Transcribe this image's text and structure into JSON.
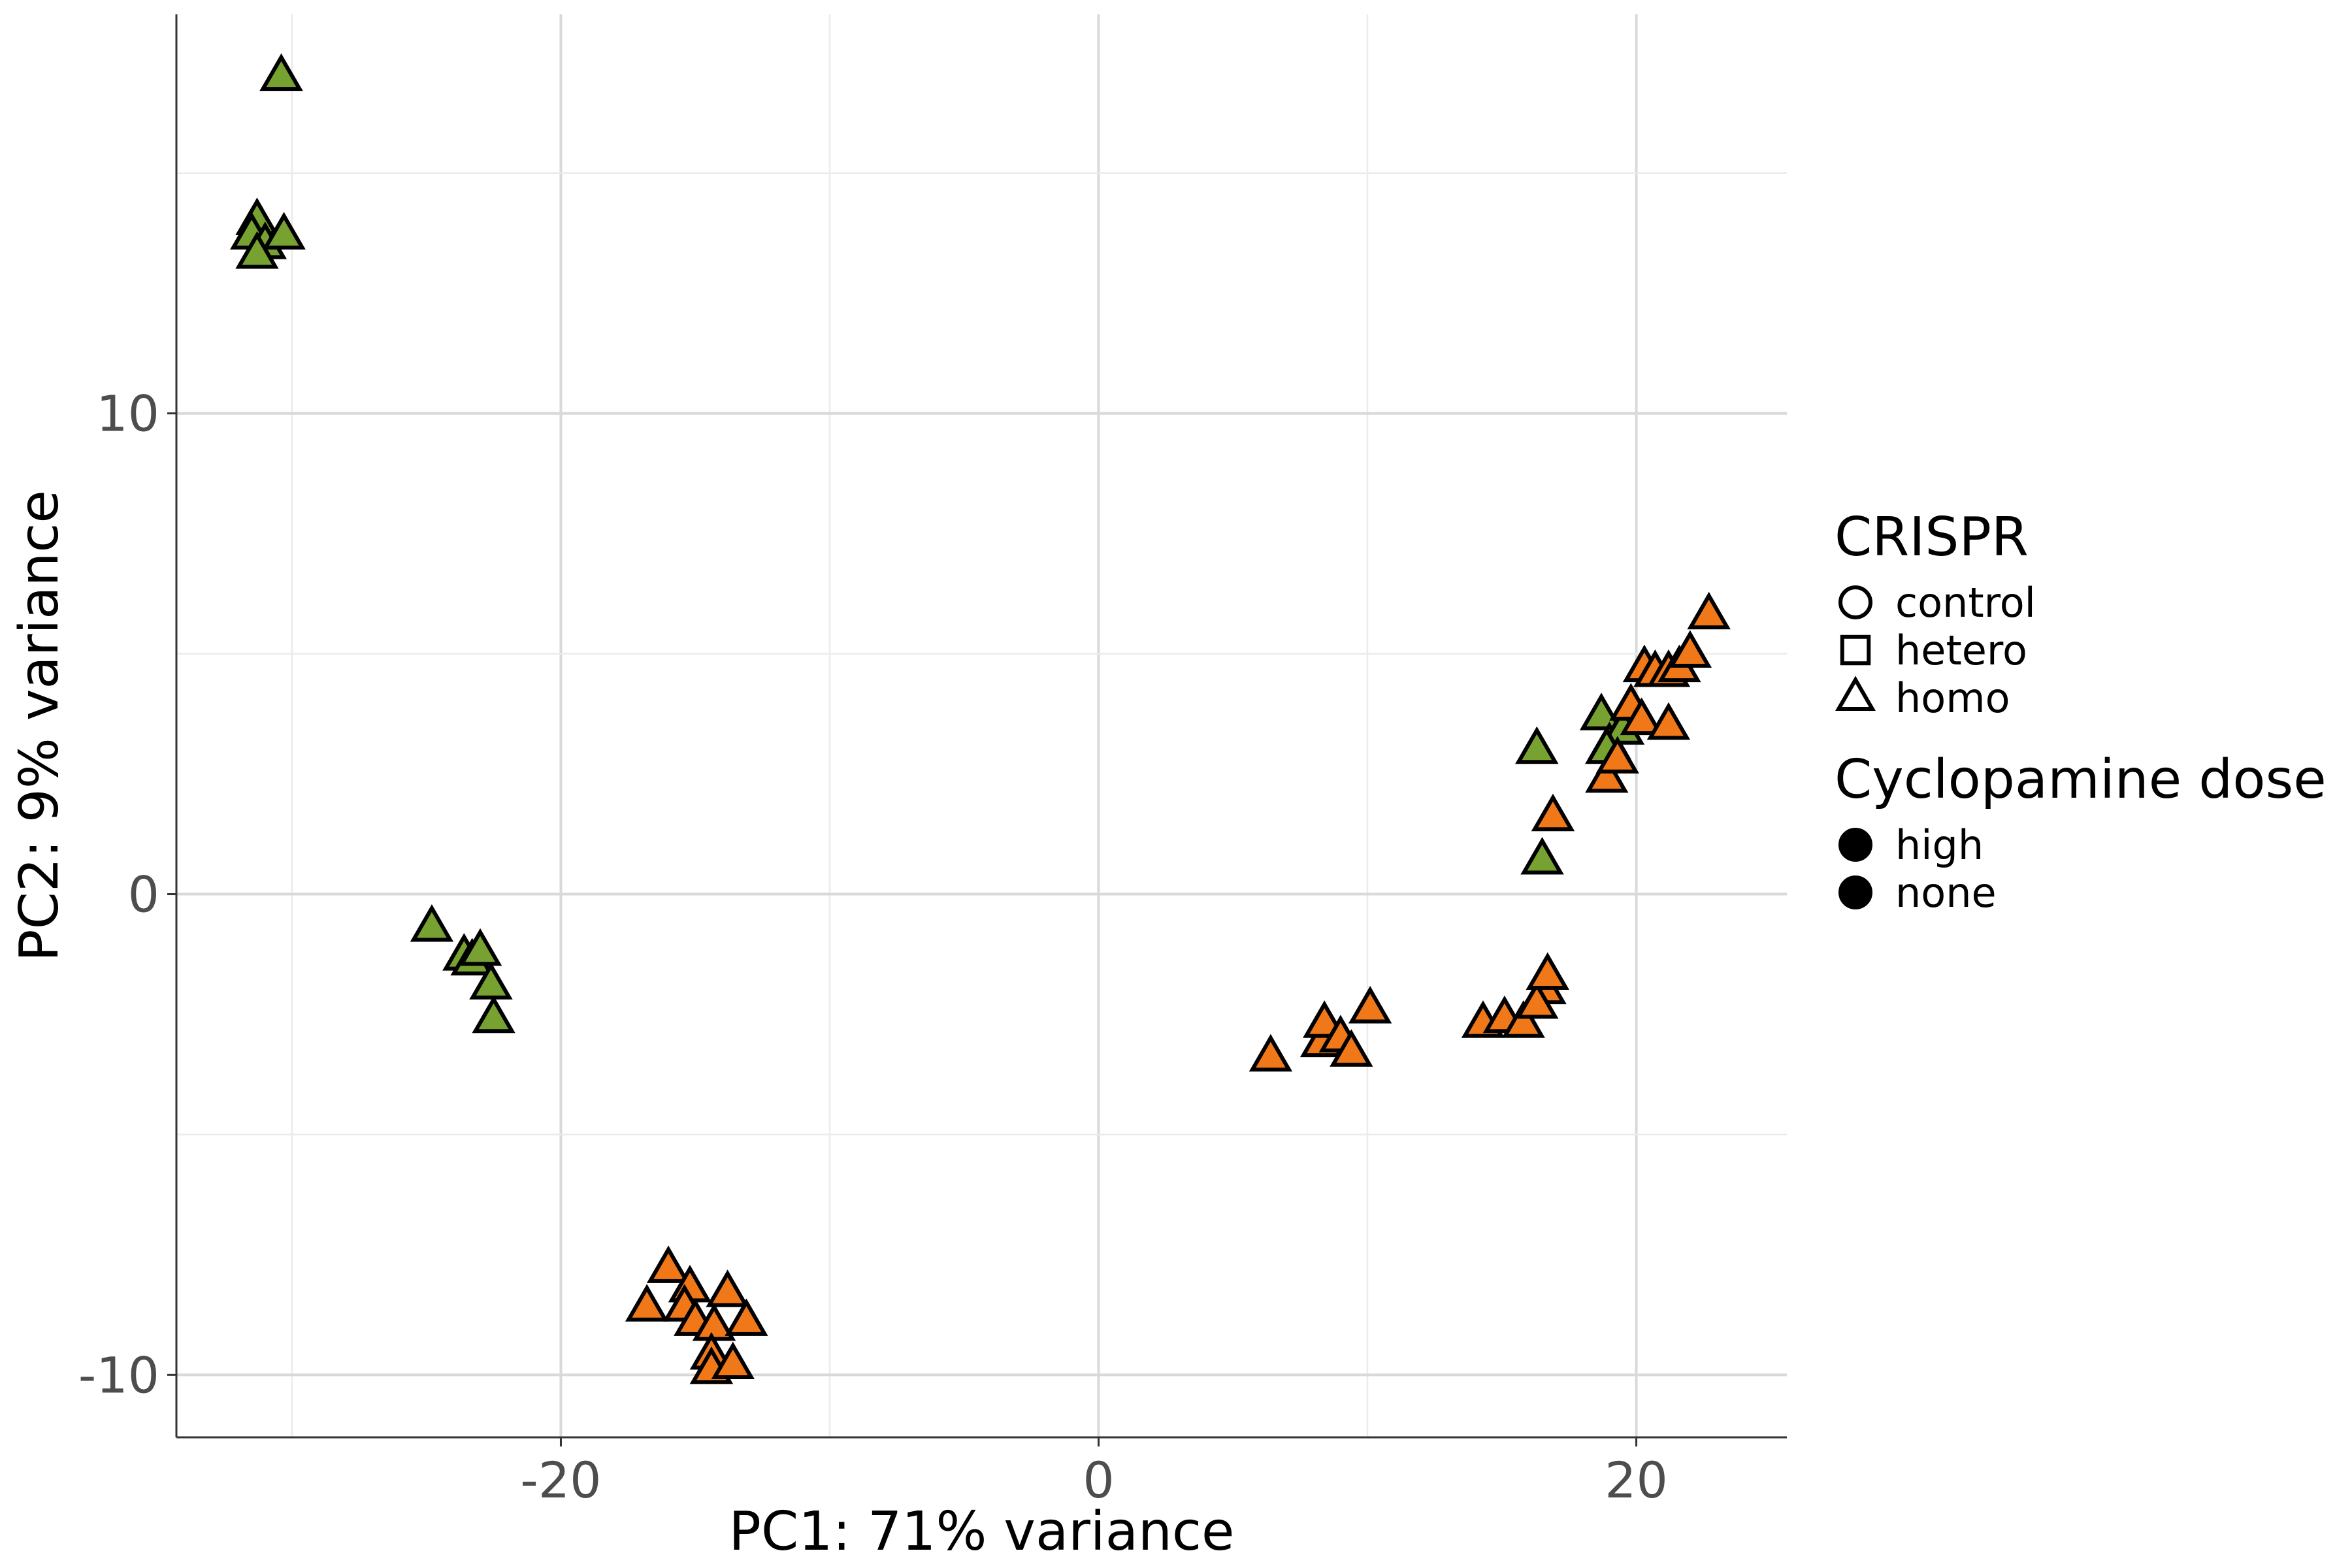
{
  "chart_data": {
    "type": "scatter",
    "title": "",
    "xlabel": "PC1: 71% variance",
    "ylabel": "PC2: 9% variance",
    "xlim": [
      -34.3,
      25.6
    ],
    "ylim": [
      -11.3,
      18.3
    ],
    "x_ticks": [
      -20,
      0,
      20
    ],
    "x_tick_labels": [
      "-20",
      "0",
      "20"
    ],
    "y_ticks": [
      -10,
      0,
      10
    ],
    "y_tick_labels": [
      "-10",
      "0",
      "10"
    ],
    "grid": true,
    "legend_position": "right",
    "colors": {
      "high": "#77a232",
      "none": "#f07818"
    },
    "legends": [
      {
        "title": "CRISPR",
        "entries": [
          {
            "label": "control",
            "shape": "circle"
          },
          {
            "label": "hetero",
            "shape": "square"
          },
          {
            "label": "homo",
            "shape": "triangle"
          }
        ]
      },
      {
        "title": "Cyclopamine dose",
        "entries": [
          {
            "label": "high",
            "shape": "circle"
          },
          {
            "label": "none",
            "shape": "circle"
          }
        ]
      }
    ],
    "series": [
      {
        "crispr": "hetero",
        "dose": "high",
        "points": [
          [
            -30.4,
            17.0
          ],
          [
            -31.3,
            14.0
          ],
          [
            -31.5,
            13.7
          ],
          [
            -31.0,
            13.5
          ],
          [
            -30.3,
            13.7
          ],
          [
            -31.3,
            13.3
          ]
        ]
      },
      {
        "crispr": "control",
        "dose": "high",
        "points": [
          [
            -24.8,
            -0.7
          ],
          [
            -23.6,
            -1.3
          ],
          [
            -23.3,
            -1.4
          ],
          [
            -23.0,
            -1.2
          ],
          [
            -22.6,
            -1.9
          ],
          [
            -22.5,
            -2.6
          ]
        ]
      },
      {
        "crispr": "control",
        "dose": "none",
        "points": [
          [
            -16.0,
            -7.8
          ],
          [
            -16.8,
            -8.6
          ],
          [
            -15.2,
            -8.2
          ],
          [
            -15.4,
            -8.6
          ],
          [
            -15.0,
            -8.9
          ],
          [
            -14.3,
            -9.0
          ],
          [
            -13.8,
            -8.3
          ],
          [
            -13.1,
            -8.9
          ],
          [
            -14.4,
            -9.6
          ],
          [
            -14.4,
            -9.9
          ],
          [
            -13.6,
            -9.8
          ]
        ]
      },
      {
        "crispr": "hetero",
        "dose": "none",
        "points": [
          [
            6.4,
            -3.4
          ],
          [
            8.3,
            -3.1
          ],
          [
            8.4,
            -2.7
          ],
          [
            9.0,
            -3.0
          ],
          [
            9.4,
            -3.3
          ],
          [
            10.1,
            -2.4
          ],
          [
            14.3,
            -2.7
          ],
          [
            15.1,
            -2.6
          ],
          [
            15.8,
            -2.7
          ],
          [
            16.6,
            -2.0
          ],
          [
            16.3,
            -2.3
          ],
          [
            16.7,
            -1.7
          ]
        ]
      },
      {
        "crispr": "homo",
        "dose": "high",
        "points": [
          [
            16.3,
            3.0
          ],
          [
            16.5,
            0.7
          ],
          [
            18.7,
            3.7
          ],
          [
            19.0,
            3.1
          ],
          [
            19.5,
            3.4
          ],
          [
            18.9,
            3.0
          ]
        ]
      },
      {
        "crispr": "homo",
        "dose": "none",
        "points": [
          [
            16.9,
            1.6
          ],
          [
            18.9,
            2.4
          ],
          [
            19.3,
            2.8
          ],
          [
            19.8,
            3.9
          ],
          [
            20.2,
            3.6
          ],
          [
            20.3,
            4.7
          ],
          [
            20.7,
            4.6
          ],
          [
            21.2,
            4.6
          ],
          [
            21.6,
            4.7
          ],
          [
            22.0,
            5.0
          ],
          [
            21.2,
            3.5
          ],
          [
            22.7,
            5.8
          ]
        ]
      }
    ]
  }
}
